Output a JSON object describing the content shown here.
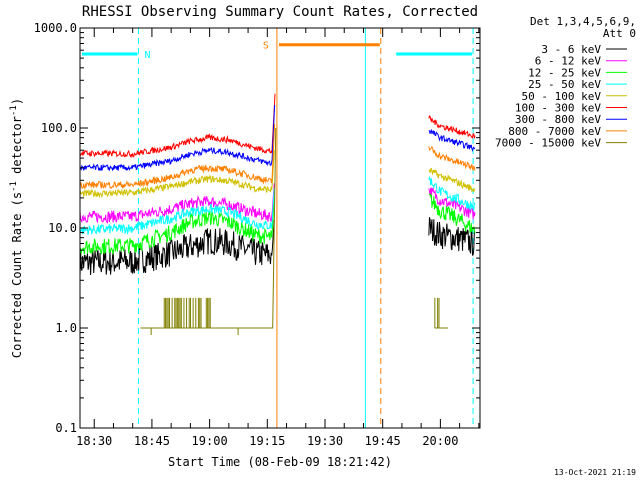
{
  "chart_data": {
    "type": "line",
    "title": "RHESSI Observing Summary Count Rates, Corrected",
    "xlabel": "Start Time (08-Feb-09 18:21:42)",
    "ylabel_main": "Corrected Count Rate (s",
    "ylabel_sup": "-1",
    "ylabel_mid": " detector",
    "ylabel_sup2": "-1",
    "ylabel_end": ")",
    "yscale": "log",
    "ylim": [
      0.1,
      1000
    ],
    "xlim_minutes": [
      -3.7,
      100.3
    ],
    "y_ticks": [
      {
        "v": 1000,
        "label": "1000.0"
      },
      {
        "v": 100,
        "label": "100.0"
      },
      {
        "v": 10,
        "label": "10.0"
      },
      {
        "v": 1,
        "label": "1.0"
      },
      {
        "v": 0.1,
        "label": "0.1"
      }
    ],
    "x_ticks": [
      {
        "t": 0,
        "label": "18:30"
      },
      {
        "t": 15,
        "label": "18:45"
      },
      {
        "t": 30,
        "label": "19:00"
      },
      {
        "t": 45,
        "label": "19:15"
      },
      {
        "t": 60,
        "label": "19:30"
      },
      {
        "t": 75,
        "label": "19:45"
      },
      {
        "t": 90,
        "label": "20:00"
      }
    ],
    "x_minor_step": 5,
    "legend": {
      "header1": "Det 1,3,4,5,6,9,",
      "header2": "Att 0",
      "entries": [
        {
          "label": "3 - 6 keV",
          "color": "#000000"
        },
        {
          "label": "6 - 12 keV",
          "color": "#ff00ff"
        },
        {
          "label": "12 - 25 keV",
          "color": "#00ff00"
        },
        {
          "label": "25 - 50 keV",
          "color": "#00ffff"
        },
        {
          "label": "50 - 100 keV",
          "color": "#d0c000"
        },
        {
          "label": "100 - 300 keV",
          "color": "#ff0000"
        },
        {
          "label": "300 - 800 keV",
          "color": "#0000ff"
        },
        {
          "label": "800 - 7000 keV",
          "color": "#ff8000"
        },
        {
          "label": "7000 - 15000 keV",
          "color": "#808000"
        }
      ]
    },
    "flags": [
      {
        "label": "N",
        "color": "#00ffff",
        "start": -3.7,
        "end": 11.5,
        "y": 550
      },
      {
        "label": "S",
        "color": "#ff8000",
        "start": 47.5,
        "end": 74.5,
        "y": 680
      },
      {
        "label": "",
        "color": "#00ffff",
        "start": 78.0,
        "end": 98.5,
        "y": 550
      }
    ],
    "vlines": [
      {
        "t": -3.7,
        "color": "#00ffff",
        "dash": false
      },
      {
        "t": 11.5,
        "color": "#00ffff",
        "dash": true
      },
      {
        "t": 47.5,
        "color": "#ff8000",
        "dash": false
      },
      {
        "t": 70.5,
        "color": "#00ffff",
        "dash": false
      },
      {
        "t": 74.5,
        "color": "#ff8000",
        "dash": true
      },
      {
        "t": 98.5,
        "color": "#00ffff",
        "dash": true
      }
    ],
    "series": [
      {
        "name": "3 - 6 keV",
        "color": "#000000",
        "noise": 0.14,
        "segments": [
          {
            "x": [
              -3.7,
              10,
              20,
              25,
              30,
              35,
              42,
              46.2,
              46.8
            ],
            "y": [
              4.5,
              4.6,
              5.6,
              6.5,
              7.5,
              7.0,
              5.6,
              5.3,
              12
            ]
          },
          {
            "x": [
              87,
              90,
              95,
              99
            ],
            "y": [
              10.0,
              8.5,
              7.8,
              7.0
            ]
          }
        ]
      },
      {
        "name": "6 - 12 keV",
        "color": "#ff00ff",
        "noise": 0.06,
        "segments": [
          {
            "x": [
              -3.7,
              10,
              20,
              25,
              30,
              35,
              42,
              46.2,
              46.8
            ],
            "y": [
              13,
              13,
              15.5,
              17.5,
              18.5,
              17,
              14,
              13,
              28
            ]
          },
          {
            "x": [
              87,
              90,
              95,
              99
            ],
            "y": [
              24,
              19,
              16,
              13.5
            ]
          }
        ]
      },
      {
        "name": "12 - 25 keV",
        "color": "#00ff00",
        "noise": 0.08,
        "segments": [
          {
            "x": [
              -3.7,
              10,
              20,
              25,
              30,
              35,
              42,
              46.2,
              46.8
            ],
            "y": [
              6.5,
              6.7,
              9,
              11.5,
              12.8,
              11.5,
              8.5,
              8,
              20
            ]
          },
          {
            "x": [
              87,
              90,
              95,
              99
            ],
            "y": [
              20,
              15,
              12,
              9.5
            ]
          }
        ]
      },
      {
        "name": "25 - 50 keV",
        "color": "#00ffff",
        "noise": 0.05,
        "segments": [
          {
            "x": [
              -3.7,
              10,
              20,
              25,
              30,
              35,
              42,
              46.2,
              46.8
            ],
            "y": [
              9.5,
              10,
              12.5,
              14.5,
              15.5,
              14.5,
              11,
              10.5,
              25
            ]
          },
          {
            "x": [
              87,
              90,
              95,
              99
            ],
            "y": [
              31,
              23,
              19,
              16
            ]
          }
        ]
      },
      {
        "name": "50 - 100 keV",
        "color": "#d0c000",
        "noise": 0.035,
        "segments": [
          {
            "x": [
              -3.7,
              10,
              20,
              25,
              30,
              35,
              42,
              46.2,
              46.8
            ],
            "y": [
              22,
              22.5,
              26,
              29,
              31,
              29.5,
              25,
              24,
              60
            ]
          },
          {
            "x": [
              87,
              90,
              95,
              99
            ],
            "y": [
              38,
              33,
              28,
              24
            ]
          }
        ]
      },
      {
        "name": "100 - 300 keV",
        "color": "#ff0000",
        "noise": 0.03,
        "segments": [
          {
            "x": [
              -3.7,
              10,
              20,
              25,
              30,
              35,
              42,
              46.2,
              47.0
            ],
            "y": [
              56,
              55,
              64,
              74,
              80,
              76,
              63,
              58,
              220
            ]
          },
          {
            "x": [
              87,
              90,
              95,
              99
            ],
            "y": [
              125,
              105,
              92,
              82
            ]
          }
        ]
      },
      {
        "name": "300 - 800 keV",
        "color": "#0000ff",
        "noise": 0.03,
        "segments": [
          {
            "x": [
              -3.7,
              10,
              20,
              25,
              30,
              35,
              42,
              46.2,
              46.9
            ],
            "y": [
              40,
              40,
              47,
              55,
              60,
              57,
              48,
              44,
              170
            ]
          },
          {
            "x": [
              87,
              90,
              95,
              99
            ],
            "y": [
              95,
              80,
              70,
              62
            ]
          }
        ]
      },
      {
        "name": "800 - 7000 keV",
        "color": "#ff8000",
        "noise": 0.035,
        "segments": [
          {
            "x": [
              -3.7,
              10,
              20,
              25,
              30,
              35,
              42,
              46.2,
              46.9
            ],
            "y": [
              27,
              27,
              32,
              38,
              40,
              38,
              32,
              29,
              110
            ]
          },
          {
            "x": [
              87,
              90,
              95,
              99
            ],
            "y": [
              64,
              52,
              45,
              40
            ]
          }
        ]
      }
    ],
    "series_7000": {
      "name": "7000 - 15000 keV",
      "color": "#808000",
      "baseline": [
        {
          "x": 12,
          "y": 1.0
        },
        {
          "x": 19,
          "y": 1.0
        },
        {
          "x": 36,
          "y": 1.0
        },
        {
          "x": 42,
          "y": 1.0
        },
        {
          "x": 46.4,
          "y": 1.0
        },
        {
          "x": 47.2,
          "y": 100
        }
      ],
      "bursts": [
        {
          "x0": 18.2,
          "x1": 30.5,
          "top": 2.0
        },
        {
          "x0": 88.2,
          "x1": 90.0,
          "top": 2.0
        }
      ],
      "dips": [
        {
          "x": 14.8,
          "y": 0.85
        },
        {
          "x": 37.4,
          "y": 0.85
        }
      ],
      "tail": {
        "x": [
          88.5,
          89,
          90,
          91,
          92
        ],
        "y": [
          1.0,
          1.0,
          1.0,
          1.0,
          1.0
        ]
      }
    },
    "footer": "13-Oct-2021 21:19"
  }
}
